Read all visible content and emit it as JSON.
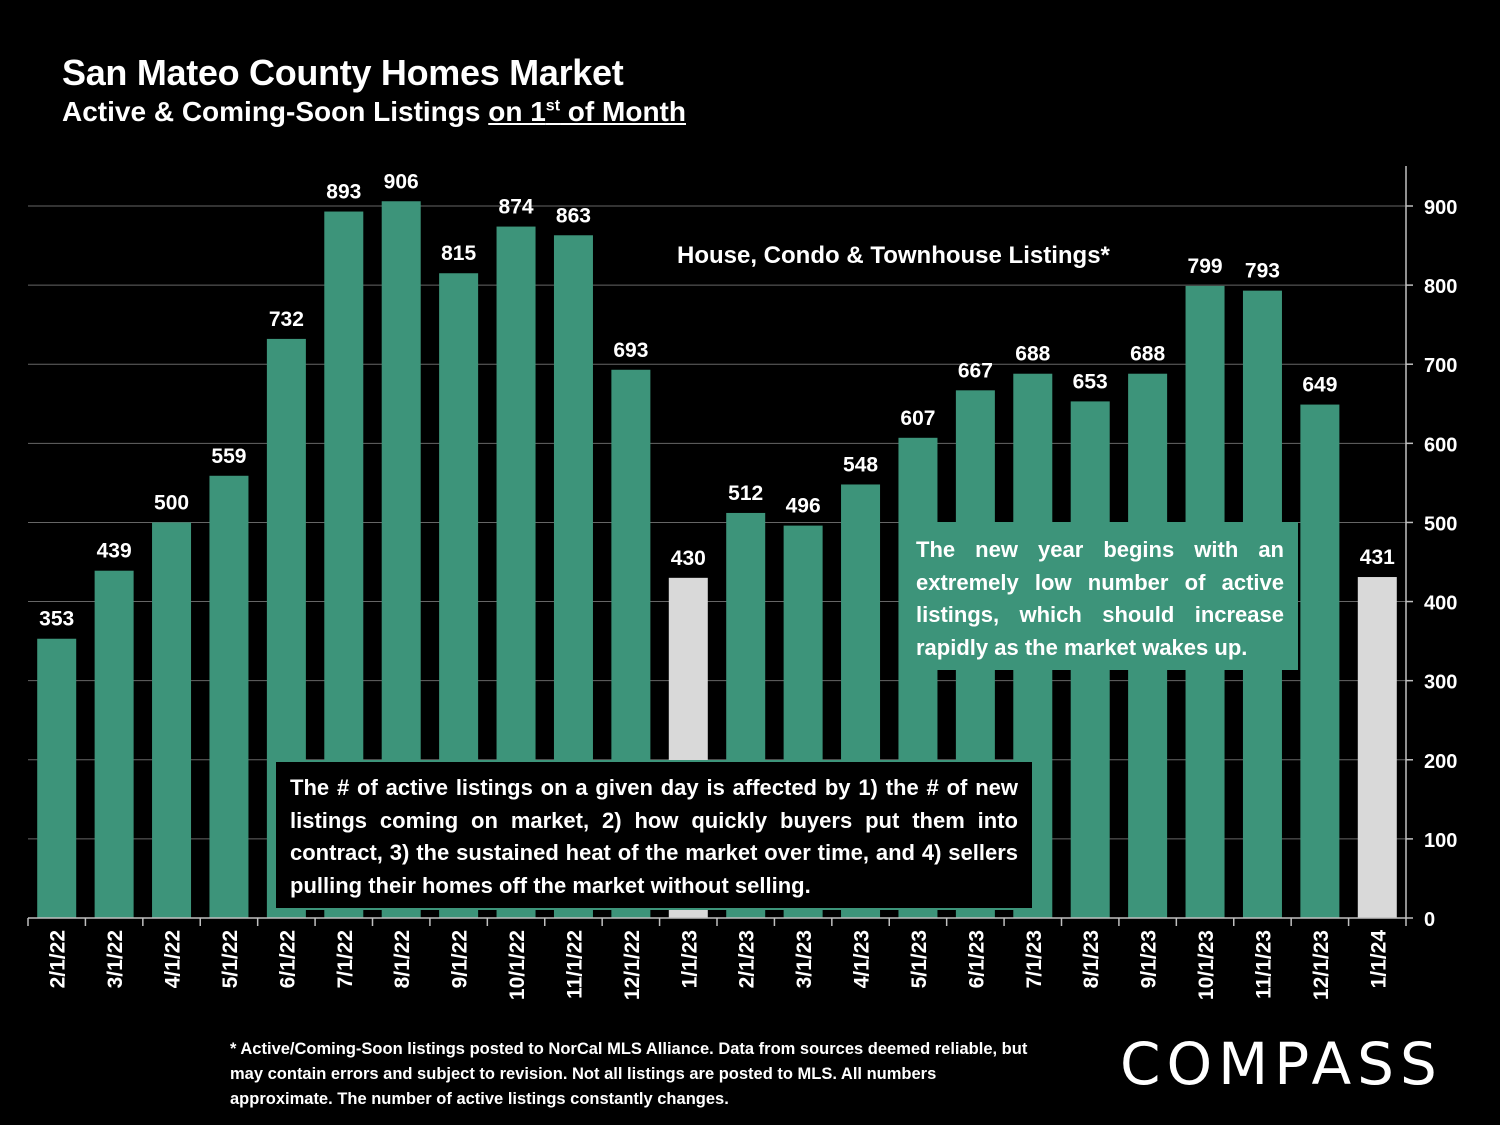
{
  "header": {
    "title": "San Mateo County Homes Market",
    "subtitle_prefix": "Active & Coming-Soon Listings ",
    "subtitle_underlined_a": "on 1",
    "subtitle_sup": "st",
    "subtitle_underlined_b": " of Month"
  },
  "annotations": {
    "series_label": "House, Condo & Townhouse Listings*",
    "right_note": "The new year begins with an extremely low number of active listings, which should increase rapidly as the market wakes up.",
    "bottom_note": "The # of active listings on a given day is affected by 1) the # of new listings coming on market, 2) how quickly buyers put them into contract, 3) the sustained heat of the market over time, and 4) sellers pulling their homes off the market without selling."
  },
  "footnote": "* Active/Coming-Soon listings posted to NorCal MLS Alliance.  Data from sources deemed reliable, but may contain errors and subject to revision.  Not all listings are posted to MLS.  All numbers approximate. The number of active listings constantly changes.",
  "logo": "COMPASS",
  "colors": {
    "bar": "#3d947a",
    "highlight": "#d9d9d9",
    "background": "#000000",
    "grid": "#666666"
  },
  "chart_data": {
    "type": "bar",
    "title": "San Mateo County Homes Market",
    "ylabel": "",
    "ylim": [
      0,
      950
    ],
    "y_ticks": [
      0,
      100,
      200,
      300,
      400,
      500,
      600,
      700,
      800,
      900
    ],
    "y_axis_side": "right",
    "grid": true,
    "categories": [
      "2/1/22",
      "3/1/22",
      "4/1/22",
      "5/1/22",
      "6/1/22",
      "7/1/22",
      "8/1/22",
      "9/1/22",
      "10/1/22",
      "11/1/22",
      "12/1/22",
      "1/1/23",
      "2/1/23",
      "3/1/23",
      "4/1/23",
      "5/1/23",
      "6/1/23",
      "7/1/23",
      "8/1/23",
      "9/1/23",
      "10/1/23",
      "11/1/23",
      "12/1/23",
      "1/1/24"
    ],
    "values": [
      353,
      439,
      500,
      559,
      732,
      893,
      906,
      815,
      874,
      863,
      693,
      430,
      512,
      496,
      548,
      607,
      667,
      688,
      653,
      688,
      799,
      793,
      649,
      431
    ],
    "highlighted": [
      "1/1/23",
      "1/1/24"
    ],
    "series_name": "House, Condo & Townhouse Listings*"
  }
}
